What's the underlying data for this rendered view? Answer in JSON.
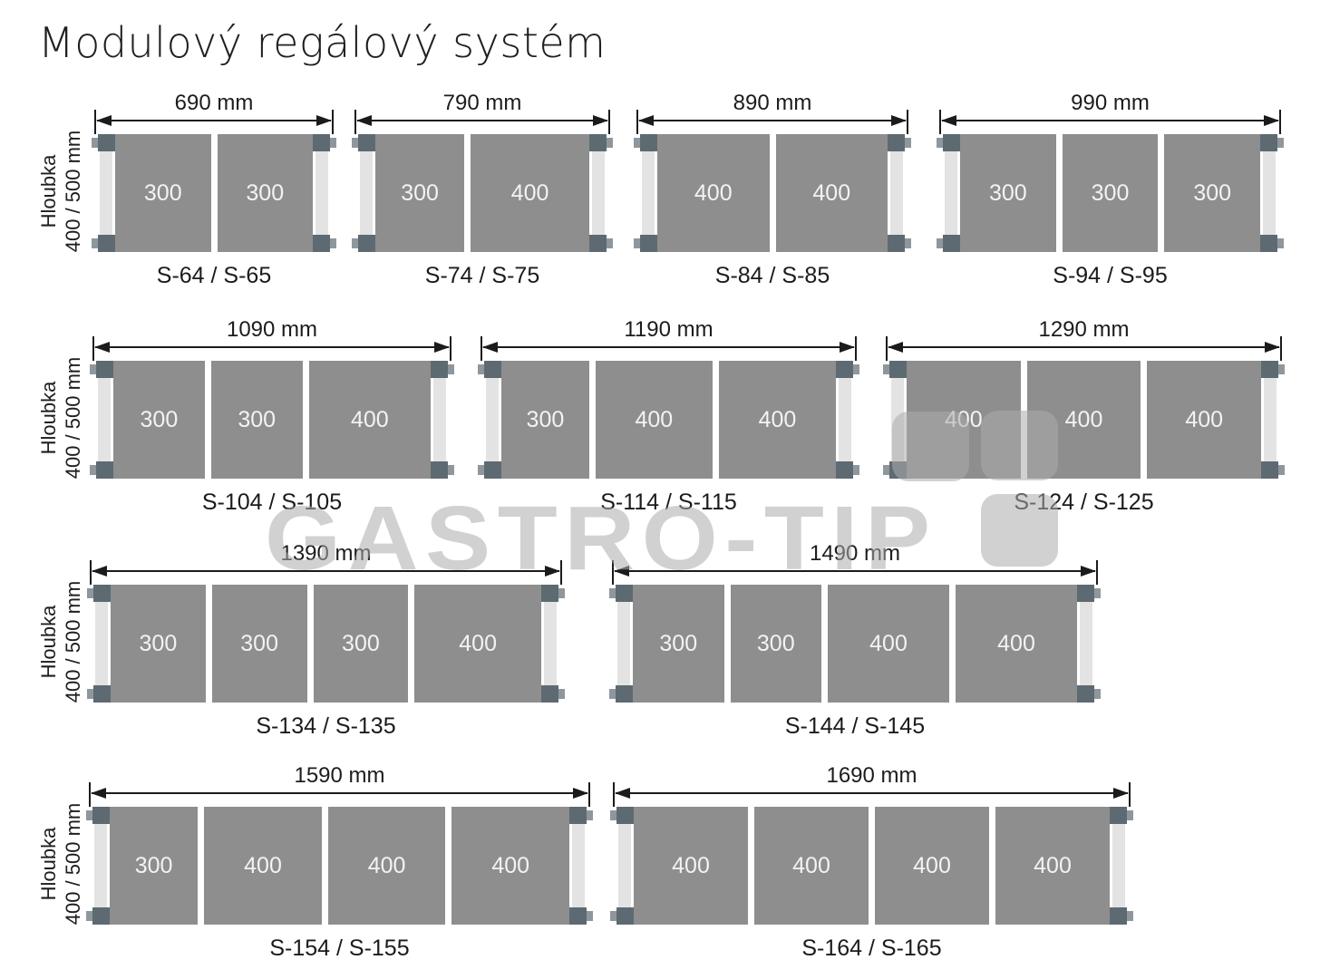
{
  "page": {
    "title": "Modulový regálový systém"
  },
  "depth_label": {
    "line1": "Hloubka",
    "line2": "400 / 500 mm"
  },
  "watermark": {
    "text": "GASTRO-TIP"
  },
  "colors": {
    "module_fill": "#8e8e8e",
    "module_text": "#f3f3f3",
    "post_fill": "#e3e3e3",
    "bracket_fill": "#5e6a72",
    "tab_fill": "#8f979d",
    "line_and_text": "#1b1b1b",
    "watermark": "rgba(172,172,172,0.55)"
  },
  "rows": [
    {
      "diagrams": [
        {
          "width_label": "690 mm",
          "modules": [
            "300",
            "300"
          ],
          "model": "S-64 / S-65"
        },
        {
          "width_label": "790 mm",
          "modules": [
            "300",
            "400"
          ],
          "model": "S-74 / S-75"
        },
        {
          "width_label": "890 mm",
          "modules": [
            "400",
            "400"
          ],
          "model": "S-84 / S-85"
        },
        {
          "width_label": "990 mm",
          "modules": [
            "300",
            "300",
            "300"
          ],
          "model": "S-94 / S-95"
        }
      ]
    },
    {
      "diagrams": [
        {
          "width_label": "1090 mm",
          "modules": [
            "300",
            "300",
            "400"
          ],
          "model": "S-104 / S-105"
        },
        {
          "width_label": "1190 mm",
          "modules": [
            "300",
            "400",
            "400"
          ],
          "model": "S-114 / S-115"
        },
        {
          "width_label": "1290 mm",
          "modules": [
            "400",
            "400",
            "400"
          ],
          "model": "S-124 / S-125"
        }
      ]
    },
    {
      "diagrams": [
        {
          "width_label": "1390 mm",
          "modules": [
            "300",
            "300",
            "300",
            "400"
          ],
          "model": "S-134 / S-135"
        },
        {
          "width_label": "1490 mm",
          "modules": [
            "300",
            "300",
            "400",
            "400"
          ],
          "model": "S-144 / S-145"
        }
      ]
    },
    {
      "diagrams": [
        {
          "width_label": "1590 mm",
          "modules": [
            "300",
            "400",
            "400",
            "400"
          ],
          "model": "S-154 / S-155"
        },
        {
          "width_label": "1690 mm",
          "modules": [
            "400",
            "400",
            "400",
            "400"
          ],
          "model": "S-164 / S-165"
        }
      ]
    }
  ]
}
